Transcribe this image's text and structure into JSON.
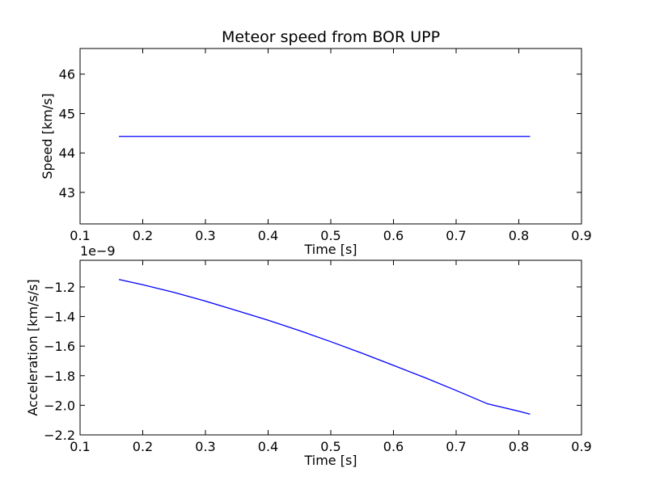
{
  "chart_data": [
    {
      "type": "line",
      "title": "Meteor speed from  BOR UPP",
      "xlabel": "Time [s]",
      "ylabel": "Speed [km/s]",
      "xlim": [
        0.1,
        0.9
      ],
      "ylim": [
        42.2,
        46.65
      ],
      "xticks": [
        0.1,
        0.2,
        0.3,
        0.4,
        0.5,
        0.6,
        0.7,
        0.8,
        0.9
      ],
      "xtick_labels": [
        "0.1",
        "0.2",
        "0.3",
        "0.4",
        "0.5",
        "0.6",
        "0.7",
        "0.8",
        "0.9"
      ],
      "yticks": [
        43,
        44,
        45,
        46
      ],
      "ytick_labels": [
        "43",
        "44",
        "45",
        "46"
      ],
      "offset_label": "",
      "grid": false,
      "series": [
        {
          "color": "#0000ff",
          "x": [
            0.162,
            0.818
          ],
          "y": [
            44.42,
            44.42
          ]
        }
      ]
    },
    {
      "type": "line",
      "title": "",
      "xlabel": "Time [s]",
      "ylabel": "Acceleration [km/s/s]",
      "xlim": [
        0.1,
        0.9
      ],
      "ylim": [
        -2.2,
        -1.02
      ],
      "xticks": [
        0.1,
        0.2,
        0.3,
        0.4,
        0.5,
        0.6,
        0.7,
        0.8,
        0.9
      ],
      "xtick_labels": [
        "0.1",
        "0.2",
        "0.3",
        "0.4",
        "0.5",
        "0.6",
        "0.7",
        "0.8",
        "0.9"
      ],
      "yticks": [
        -2.2,
        -2.0,
        -1.8,
        -1.6,
        -1.4,
        -1.2
      ],
      "ytick_labels": [
        "−2.2",
        "−2.0",
        "−1.8",
        "−1.6",
        "−1.4",
        "−1.2"
      ],
      "offset_label": "1e−9",
      "grid": false,
      "series": [
        {
          "color": "#0000ff",
          "x": [
            0.162,
            0.2,
            0.25,
            0.3,
            0.35,
            0.4,
            0.45,
            0.5,
            0.55,
            0.6,
            0.65,
            0.7,
            0.75,
            0.8,
            0.818
          ],
          "y": [
            -1.15,
            -1.185,
            -1.237,
            -1.296,
            -1.36,
            -1.425,
            -1.495,
            -1.57,
            -1.648,
            -1.73,
            -1.813,
            -1.9,
            -1.99,
            -2.04,
            -2.06
          ]
        }
      ]
    }
  ]
}
